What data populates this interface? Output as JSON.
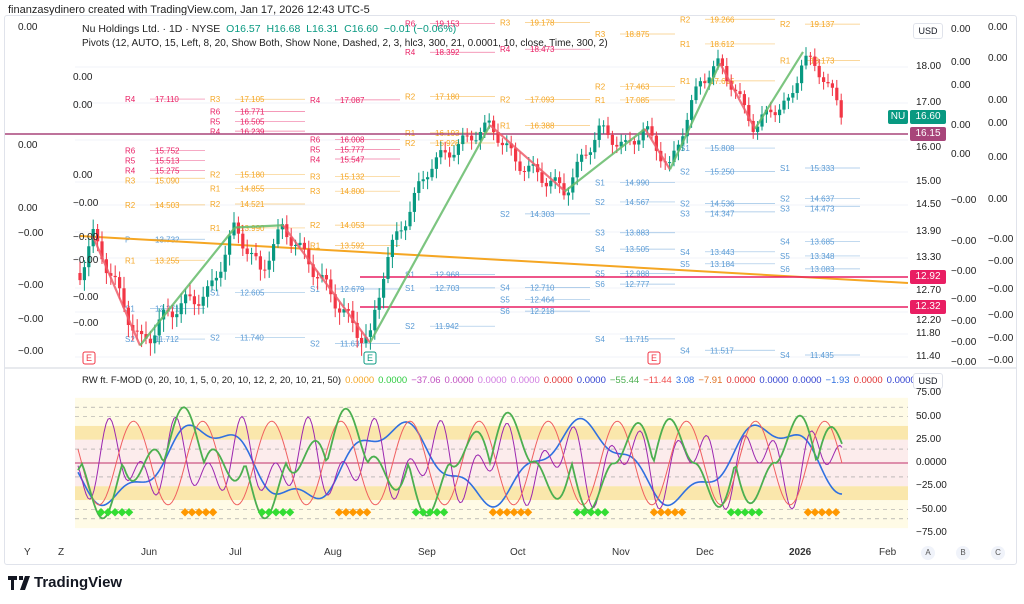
{
  "credit": "finanzasydinero created with TradingView.com, Jan 17, 2026 12:43 UTC-5",
  "symbol": {
    "name": "Nu Holdings Ltd. · 1D · NYSE",
    "open": "O16.57",
    "high": "H16.68",
    "low": "L16.31",
    "close": "C16.60",
    "change": "−0.01 (−0.06%)"
  },
  "pivots_legend": "Pivots (12, AUTO, 15, Left, 8, 20, Show Both, Show None, Dashed, 2, 3, hlc3, 300, 21, 0.0001, 10, close, Time, 300, 2)",
  "osc_legend": {
    "name": "RW ft. F-MOD (0, 20, 10, 1, 5, 0, 20, 10, 12, 2, 20, 10, 21, 50)",
    "values": [
      {
        "v": "0.0000",
        "c": "#f5a623"
      },
      {
        "v": "0.0000",
        "c": "#2ecc40"
      },
      {
        "v": "−37.06",
        "c": "#c04fc0"
      },
      {
        "v": "0.0000",
        "c": "#c04fc0"
      },
      {
        "v": "0.0000",
        "c": "#d07ae0"
      },
      {
        "v": "0.0000",
        "c": "#d07ae0"
      },
      {
        "v": "0.0000",
        "c": "#e03030"
      },
      {
        "v": "0.0000",
        "c": "#3040d0"
      },
      {
        "v": "−55.44",
        "c": "#4caf50"
      },
      {
        "v": "−11.44",
        "c": "#f05050"
      },
      {
        "v": "3.08",
        "c": "#3070e0"
      },
      {
        "v": "−7.91",
        "c": "#e07020"
      },
      {
        "v": "0.0000",
        "c": "#e03030"
      },
      {
        "v": "0.0000",
        "c": "#3040d0"
      },
      {
        "v": "0.0000",
        "c": "#3040d0"
      },
      {
        "v": "−1.93",
        "c": "#3070e0"
      },
      {
        "v": "0.0000",
        "c": "#e03030"
      },
      {
        "v": "0.0000",
        "c": "#3040d0"
      }
    ]
  },
  "currency": "USD",
  "price_ticks": [
    "18.00",
    "17.00",
    "16.00",
    "15.00",
    "14.50",
    "13.90",
    "13.30",
    "12.70",
    "12.20",
    "11.80",
    "11.40"
  ],
  "price_labels": [
    {
      "ticker": "NU",
      "value": "16.60",
      "color": "#089981"
    },
    {
      "value": "16.15",
      "color": "#a8457a"
    },
    {
      "value": "12.92",
      "color": "#e91e63"
    },
    {
      "value": "12.32",
      "color": "#e91e63"
    }
  ],
  "osc_ticks": [
    "75.00",
    "50.00",
    "25.00",
    "0.0000",
    "−25.00",
    "−50.00",
    "−75.00"
  ],
  "left_zero_labels": [
    "0.00",
    "0.00",
    "0.00",
    "0.00",
    "0.00",
    "0.00",
    "−0.00",
    "−0.00",
    "−0.00",
    "−0.00",
    "−0.00",
    "−0.00",
    "−0.00",
    "−0.00",
    "−0.00"
  ],
  "right_zero_labels_a": [
    "0.00",
    "0.00",
    "0.00",
    "0.00",
    "0.00",
    "−0.00",
    "−0.00",
    "−0.00",
    "−0.00",
    "−0.00",
    "−0.00",
    "−0.00"
  ],
  "right_zero_labels_b": [
    "0.00",
    "0.00",
    "0.00",
    "0.00",
    "0.00",
    "0.00",
    "−0.00",
    "−0.00",
    "−0.00",
    "−0.00",
    "−0.00",
    "−0.00"
  ],
  "x_axis": [
    "Y",
    "Z",
    "Jun",
    "Jul",
    "Aug",
    "Sep",
    "Oct",
    "Nov",
    "Dec",
    "2026",
    "Feb"
  ],
  "scale_buttons": [
    "A",
    "B",
    "C"
  ],
  "event_markers": [
    "E",
    "E",
    "E"
  ],
  "pivot_periods": [
    {
      "levels": [
        [
          "R4",
          "17.110"
        ],
        [
          "R6",
          "15.752"
        ],
        [
          "R5",
          "15.513"
        ],
        [
          "R4",
          "15.275"
        ],
        [
          "R3",
          "15.090"
        ],
        [
          "R2",
          "14.503"
        ],
        [
          "P",
          "13.732"
        ],
        [
          "R1",
          "13.255"
        ],
        [
          "S1",
          "12.271"
        ],
        [
          "S2",
          "11.712"
        ]
      ]
    },
    {
      "levels": [
        [
          "R3",
          "17.105"
        ],
        [
          "R6",
          "16.771"
        ],
        [
          "R5",
          "16.505"
        ],
        [
          "R4",
          "16.239"
        ],
        [
          "R2",
          "15.180"
        ],
        [
          "R1",
          "14.855"
        ],
        [
          "R2",
          "14.521"
        ],
        [
          "R1",
          "13.990"
        ],
        [
          "S1",
          "12.605"
        ],
        [
          "S2",
          "11.740"
        ]
      ]
    },
    {
      "levels": [
        [
          "R4",
          "17.087"
        ],
        [
          "R6",
          "16.008"
        ],
        [
          "R5",
          "15.777"
        ],
        [
          "R4",
          "15.547"
        ],
        [
          "R3",
          "15.132"
        ],
        [
          "R3",
          "14.800"
        ],
        [
          "R2",
          "14.053"
        ],
        [
          "R1",
          "13.592"
        ],
        [
          "S1",
          "12.679"
        ],
        [
          "S2",
          "11.637"
        ]
      ]
    },
    {
      "levels": [
        [
          "R6",
          "19.153"
        ],
        [
          "R4",
          "18.392"
        ],
        [
          "R2",
          "17.180"
        ],
        [
          "R1",
          "16.193"
        ],
        [
          "R2",
          "15.928"
        ],
        [
          "S1",
          "12.968"
        ],
        [
          "S1",
          "12.703"
        ],
        [
          "S2",
          "11.942"
        ]
      ]
    },
    {
      "levels": [
        [
          "R3",
          "19.178"
        ],
        [
          "R4",
          "18.473"
        ],
        [
          "R2",
          "17.093"
        ],
        [
          "R1",
          "16.388"
        ],
        [
          "S2",
          "14.303"
        ],
        [
          "S4",
          "12.710"
        ],
        [
          "S5",
          "12.464"
        ],
        [
          "S6",
          "12.218"
        ]
      ]
    },
    {
      "levels": [
        [
          "R3",
          "18.875"
        ],
        [
          "R2",
          "17.463"
        ],
        [
          "R1",
          "17.085"
        ],
        [
          "S1",
          "14.990"
        ],
        [
          "S2",
          "14.567"
        ],
        [
          "S3",
          "13.883"
        ],
        [
          "S4",
          "13.505"
        ],
        [
          "S5",
          "12.988"
        ],
        [
          "S6",
          "12.777"
        ],
        [
          "S4",
          "11.715"
        ]
      ]
    },
    {
      "levels": [
        [
          "R2",
          "19.266"
        ],
        [
          "R1",
          "18.612"
        ],
        [
          "R1",
          "17.615"
        ],
        [
          "S1",
          "15.808"
        ],
        [
          "S2",
          "15.250"
        ],
        [
          "S2",
          "14.536"
        ],
        [
          "S3",
          "14.347"
        ],
        [
          "S4",
          "13.443"
        ],
        [
          "S5",
          "13.184"
        ],
        [
          "S4",
          "11.517"
        ]
      ]
    },
    {
      "levels": [
        [
          "R2",
          "19.137"
        ],
        [
          "R1",
          "18.173"
        ],
        [
          "S1",
          "15.333"
        ],
        [
          "S2",
          "14.637"
        ],
        [
          "S3",
          "14.473"
        ],
        [
          "S4",
          "13.685"
        ],
        [
          "S5",
          "13.348"
        ],
        [
          "S6",
          "13.083"
        ],
        [
          "S4",
          "11.435"
        ]
      ]
    }
  ],
  "logo": "TradingView",
  "colors": {
    "up": "#089981",
    "down": "#f23645",
    "zigzag": "#66bb6a",
    "trend": "#f5a623",
    "band": "#f7d774"
  }
}
